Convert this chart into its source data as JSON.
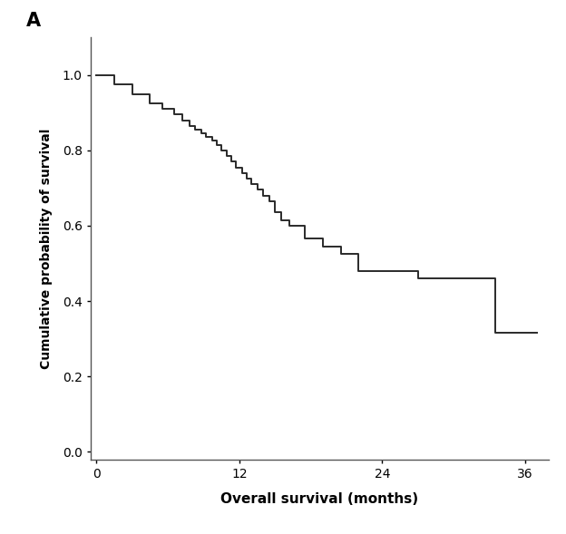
{
  "title_label": "A",
  "xlabel": "Overall survival (months)",
  "ylabel": "Cumulative probability of survival",
  "xlim": [
    -0.5,
    38
  ],
  "ylim": [
    -0.02,
    1.1
  ],
  "xticks": [
    0,
    12,
    24,
    36
  ],
  "yticks": [
    0.0,
    0.2,
    0.4,
    0.6,
    0.8,
    1.0
  ],
  "line_color": "#2a2a2a",
  "line_width": 1.4,
  "background_color": "#ffffff",
  "step_times": [
    0,
    1.5,
    3.0,
    4.5,
    5.5,
    6.5,
    7.2,
    7.8,
    8.3,
    8.8,
    9.2,
    9.7,
    10.1,
    10.5,
    10.9,
    11.3,
    11.7,
    12.2,
    12.6,
    13.0,
    13.5,
    14.0,
    14.5,
    15.0,
    15.5,
    16.2,
    17.5,
    19.0,
    20.5,
    22.0,
    27.0,
    33.5,
    37.0
  ],
  "step_probs": [
    1.0,
    0.975,
    0.95,
    0.925,
    0.91,
    0.895,
    0.88,
    0.865,
    0.855,
    0.845,
    0.835,
    0.825,
    0.815,
    0.8,
    0.785,
    0.77,
    0.755,
    0.74,
    0.725,
    0.71,
    0.695,
    0.68,
    0.665,
    0.635,
    0.615,
    0.6,
    0.565,
    0.545,
    0.525,
    0.48,
    0.46,
    0.315,
    0.315
  ]
}
